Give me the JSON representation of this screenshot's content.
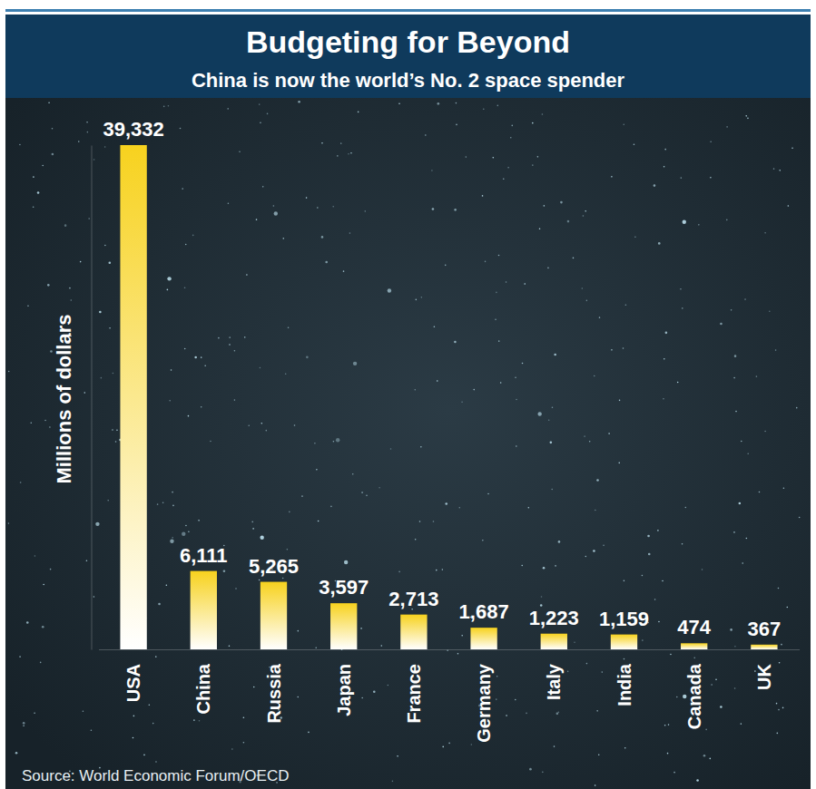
{
  "chart_data": {
    "type": "bar",
    "title": "Budgeting for Beyond",
    "subtitle": "China is now the world’s No. 2 space spender",
    "y_label": "Millions of dollars",
    "source": "Source: World Economic Forum/OECD",
    "categories": [
      "USA",
      "China",
      "Russia",
      "Japan",
      "France",
      "Germany",
      "Italy",
      "India",
      "Canada",
      "UK"
    ],
    "values": [
      39332,
      6111,
      5265,
      3597,
      2713,
      1687,
      1223,
      1159,
      474,
      367
    ],
    "value_labels": [
      "39,332",
      "6,111",
      "5,265",
      "3,597",
      "2,713",
      "1,687",
      "1,223",
      "1,159",
      "474",
      "367"
    ],
    "color": "#f7d21e",
    "ylim": [
      0,
      39332
    ],
    "yticks": [],
    "grid": false,
    "data_labels": true,
    "tick_labels": "x"
  }
}
